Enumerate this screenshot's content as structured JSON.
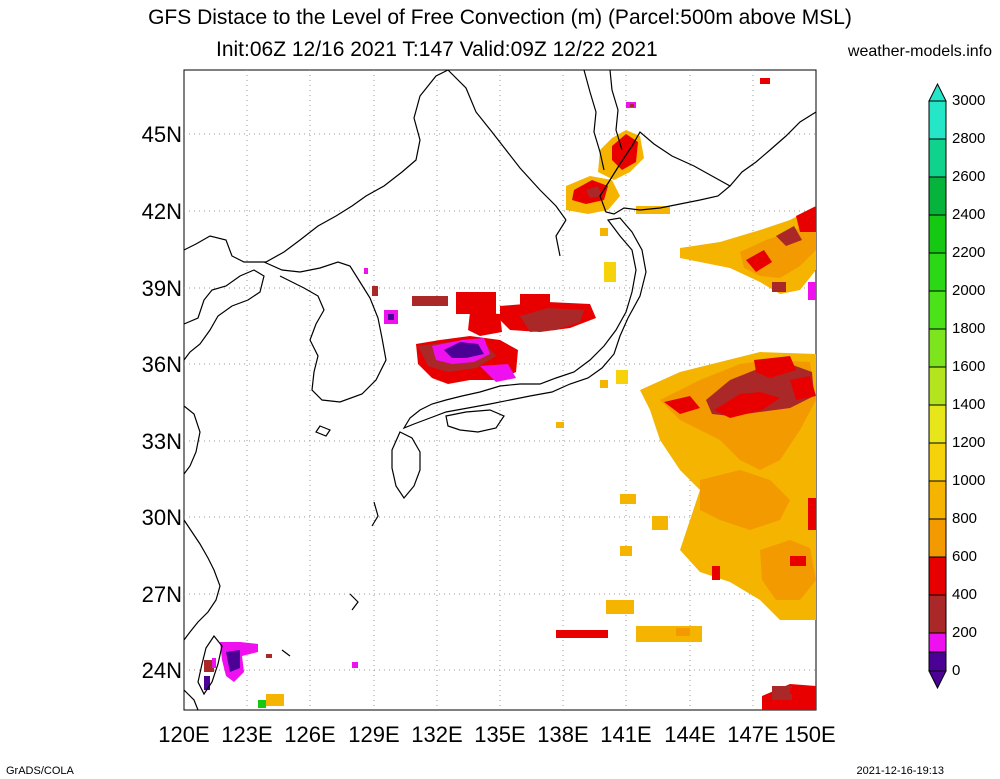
{
  "title": {
    "line1": "GFS Distace to the Level of Free Convection (m) (Parcel:500m above MSL)",
    "line2": "Init:06Z 12/16 2021 T:147 Valid:09Z 12/22 2021",
    "site": "weather-models.info"
  },
  "axes": {
    "lat_labels": [
      "45N",
      "42N",
      "39N",
      "36N",
      "33N",
      "30N",
      "27N",
      "24N"
    ],
    "lon_labels": [
      "120E",
      "123E",
      "126E",
      "129E",
      "132E",
      "135E",
      "138E",
      "141E",
      "144E",
      "147E",
      "150E"
    ]
  },
  "colorbar": {
    "labels": [
      "3000",
      "2800",
      "2600",
      "2400",
      "2200",
      "2000",
      "1800",
      "1600",
      "1400",
      "1200",
      "1000",
      "800",
      "600",
      "400",
      "200",
      "0"
    ],
    "colors": [
      "#26e6c8",
      "#0fd28c",
      "#06b43c",
      "#15c811",
      "#2bd815",
      "#4ce21a",
      "#7ce51e",
      "#b4e41e",
      "#e6e61a",
      "#f5d20a",
      "#f5b400",
      "#f39a00",
      "#e80000",
      "#aa2828",
      "#ee10ee",
      "#4b0096"
    ]
  },
  "footer": {
    "left": "GrADS/COLA",
    "right": "2021-12-16-19:13"
  },
  "palette": {
    "red": "#e80000",
    "brown": "#aa2828",
    "magenta": "#ee10ee",
    "purple": "#4b0096",
    "orange": "#f39a00",
    "amber": "#f5b400",
    "yellow": "#f5d20a"
  }
}
